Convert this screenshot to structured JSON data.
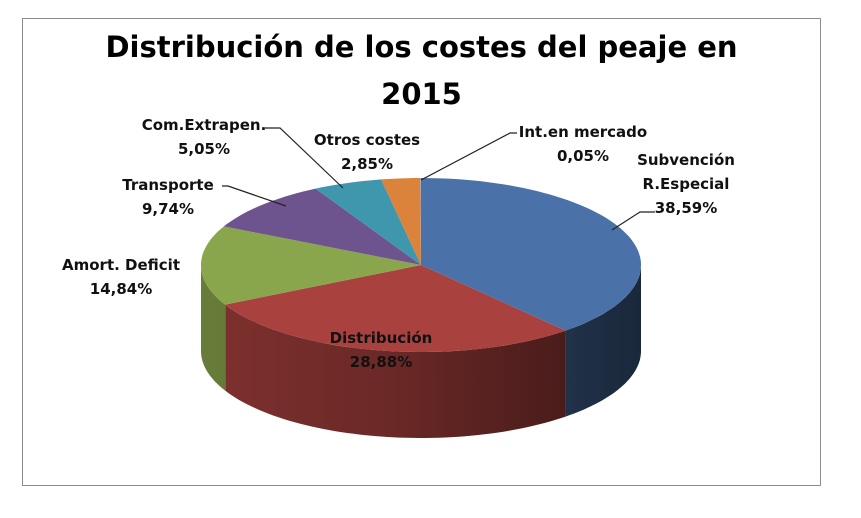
{
  "chart_data": {
    "type": "pie",
    "style": "3d",
    "title": "Distribución de los costes del peaje en 2015",
    "title_lines": [
      "Distribución de los costes del peaje en",
      "2015"
    ],
    "slices": [
      {
        "label": "Subvención R.Especial",
        "label_lines": [
          "Subvención",
          "R.Especial"
        ],
        "value": 38.59,
        "value_label": "38,59%",
        "color": "#4a72a8"
      },
      {
        "label": "Distribución",
        "label_lines": [
          "Distribución"
        ],
        "value": 28.88,
        "value_label": "28,88%",
        "color": "#a9413e"
      },
      {
        "label": "Amort. Deficit",
        "label_lines": [
          "Amort. Deficit"
        ],
        "value": 14.84,
        "value_label": "14,84%",
        "color": "#8aa64c"
      },
      {
        "label": "Transporte",
        "label_lines": [
          "Transporte"
        ],
        "value": 9.74,
        "value_label": "9,74%",
        "color": "#6e548f"
      },
      {
        "label": "Com.Extrapen.",
        "label_lines": [
          "Com.Extrapen."
        ],
        "value": 5.05,
        "value_label": "5,05%",
        "color": "#3f97ae"
      },
      {
        "label": "Otros costes",
        "label_lines": [
          "Otros costes"
        ],
        "value": 2.85,
        "value_label": "2,85%",
        "color": "#db833a"
      },
      {
        "label": "Int.en mercado",
        "label_lines": [
          "Int.en mercado"
        ],
        "value": 0.05,
        "value_label": "0,05%",
        "color": "#93a9cf"
      }
    ],
    "legend": "none"
  }
}
